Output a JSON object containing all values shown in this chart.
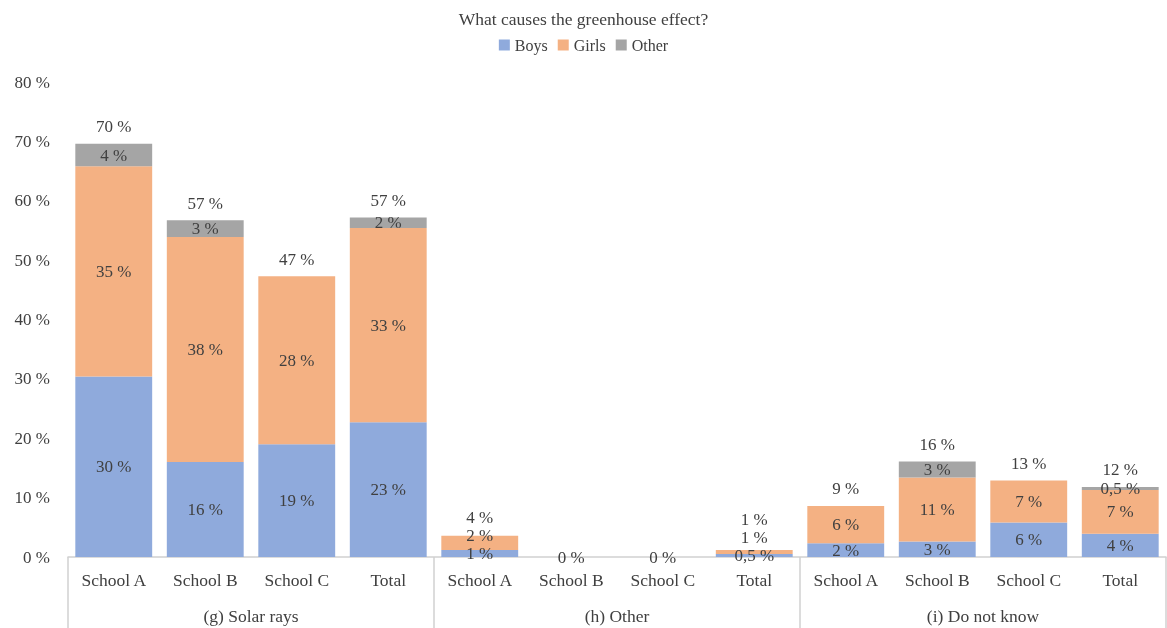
{
  "chart_data": {
    "type": "bar",
    "title": "What causes the greenhouse effect?",
    "categories": [
      "School A",
      "School B",
      "School C",
      "Total",
      "School A",
      "School B",
      "School C",
      "Total",
      "School A",
      "School B",
      "School C",
      "Total"
    ],
    "stacked": true,
    "series": [
      {
        "name": "Boys",
        "color": "#8faadc",
        "values": [
          30.4,
          16.0,
          19.0,
          22.7,
          1.2,
          0,
          0,
          0.5,
          2.3,
          2.6,
          5.8,
          3.9
        ],
        "value_labels": [
          "30 %",
          "16 %",
          "19 %",
          "23 %",
          "1 %",
          "0 %",
          "0 %",
          "0,5 %",
          "2 %",
          "3 %",
          "6 %",
          "4 %"
        ]
      },
      {
        "name": "Girls",
        "color": "#f4b183",
        "values": [
          35.4,
          37.9,
          28.3,
          32.7,
          2.4,
          0,
          0,
          0.7,
          6.3,
          10.8,
          7.1,
          7.4
        ],
        "value_labels": [
          "35 %",
          "38 %",
          "28 %",
          "33 %",
          "2 %",
          null,
          null,
          "1 %",
          "6 %",
          "11 %",
          "7 %",
          "7 %"
        ]
      },
      {
        "name": "Other",
        "color": "#a5a5a5",
        "values": [
          3.8,
          2.8,
          0,
          1.8,
          0,
          0,
          0,
          0,
          0,
          2.7,
          0,
          0.5
        ],
        "value_labels": [
          "4 %",
          "3 %",
          null,
          "2 %",
          null,
          null,
          null,
          null,
          null,
          "3 %",
          null,
          "0,5 %"
        ]
      }
    ],
    "totals": [
      "70 %",
      "57 %",
      "47 %",
      "57 %",
      "4 %",
      null,
      null,
      "1 %",
      "9 %",
      "16 %",
      "13 %",
      "12 %"
    ],
    "ylim": [
      0,
      80
    ],
    "yticks": [
      {
        "value": 0,
        "label": "0 %"
      },
      {
        "value": 10,
        "label": "10 %"
      },
      {
        "value": 20,
        "label": "20 %"
      },
      {
        "value": 30,
        "label": "30 %"
      },
      {
        "value": 40,
        "label": "40 %"
      },
      {
        "value": 50,
        "label": "50 %"
      },
      {
        "value": 60,
        "label": "60 %"
      },
      {
        "value": 70,
        "label": "70 %"
      },
      {
        "value": 80,
        "label": "80 %"
      }
    ],
    "legend": "top",
    "annotations": [
      "(g) Solar rays",
      "(h) Other",
      "(i) Do not know"
    ]
  }
}
